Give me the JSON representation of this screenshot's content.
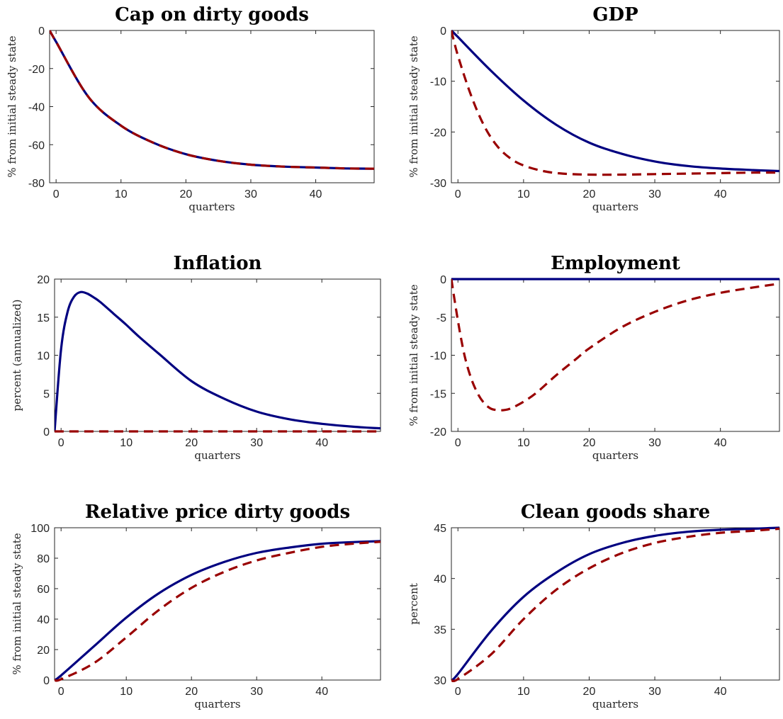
{
  "chart_data": [
    {
      "type": "line",
      "title": "Cap on dirty goods",
      "xlabel": "quarters",
      "ylabel": "% from initial steady state",
      "xlim": [
        -1,
        49
      ],
      "ylim": [
        -80,
        0
      ],
      "xticks": [
        0,
        10,
        20,
        30,
        40
      ],
      "yticks": [
        -80,
        -60,
        -40,
        -20,
        0
      ],
      "grid": false,
      "series": [
        {
          "style": "solid",
          "color": "#000080",
          "x": [
            -1,
            0,
            5,
            10,
            15,
            20,
            25,
            30,
            35,
            40,
            45,
            49
          ],
          "y": [
            0,
            -6,
            -35,
            -50,
            -59,
            -65,
            -68.5,
            -70.5,
            -71.5,
            -72,
            -72.5,
            -72.6
          ]
        },
        {
          "style": "dashed",
          "color": "#990000",
          "x": [
            -1,
            0,
            5,
            10,
            15,
            20,
            25,
            30,
            35,
            40,
            45,
            49
          ],
          "y": [
            0,
            -6,
            -35,
            -50,
            -59,
            -65,
            -68.5,
            -70.5,
            -71.5,
            -72,
            -72.5,
            -72.6
          ]
        }
      ]
    },
    {
      "type": "line",
      "title": "GDP",
      "xlabel": "quarters",
      "ylabel": "% from initial steady state",
      "xlim": [
        -1,
        49
      ],
      "ylim": [
        -30,
        0
      ],
      "xticks": [
        0,
        10,
        20,
        30,
        40
      ],
      "yticks": [
        -30,
        -20,
        -10,
        0
      ],
      "grid": false,
      "series": [
        {
          "style": "solid",
          "color": "#000080",
          "x": [
            -1,
            0,
            5,
            10,
            15,
            20,
            25,
            30,
            35,
            40,
            45,
            49
          ],
          "y": [
            0,
            -1.3,
            -7.9,
            -13.8,
            -18.6,
            -22.1,
            -24.3,
            -25.8,
            -26.7,
            -27.2,
            -27.5,
            -27.7
          ]
        },
        {
          "style": "dashed",
          "color": "#990000",
          "x": [
            -1,
            0,
            2,
            4,
            6,
            8,
            10,
            13,
            16,
            20,
            25,
            30,
            35,
            40,
            45,
            49
          ],
          "y": [
            0,
            -5,
            -12.8,
            -18.8,
            -22.8,
            -25.2,
            -26.6,
            -27.7,
            -28.2,
            -28.4,
            -28.4,
            -28.3,
            -28.2,
            -28.1,
            -28.0,
            -28.0
          ]
        }
      ]
    },
    {
      "type": "line",
      "title": "Inflation",
      "xlabel": "quarters",
      "ylabel": "percent (annualized)",
      "xlim": [
        -1,
        49
      ],
      "ylim": [
        0,
        20
      ],
      "xticks": [
        0,
        10,
        20,
        30,
        40
      ],
      "yticks": [
        0,
        5,
        10,
        15,
        20
      ],
      "grid": false,
      "series": [
        {
          "style": "solid",
          "color": "#000080",
          "x": [
            -1,
            0,
            1,
            2,
            3,
            4,
            5,
            6,
            8,
            10,
            12,
            15,
            20,
            25,
            30,
            35,
            40,
            45,
            49
          ],
          "y": [
            0,
            10.8,
            15.7,
            17.7,
            18.3,
            18.1,
            17.6,
            17,
            15.5,
            14,
            12.4,
            10.2,
            6.6,
            4.3,
            2.6,
            1.6,
            1.0,
            0.6,
            0.4
          ]
        },
        {
          "style": "dashed",
          "color": "#990000",
          "x": [
            -1,
            49
          ],
          "y": [
            0,
            0
          ]
        }
      ]
    },
    {
      "type": "line",
      "title": "Employment",
      "xlabel": "quarters",
      "ylabel": "% from initial steady state",
      "xlim": [
        -1,
        49
      ],
      "ylim": [
        -20,
        0
      ],
      "xticks": [
        0,
        10,
        20,
        30,
        40
      ],
      "yticks": [
        -20,
        -15,
        -10,
        -5,
        0
      ],
      "grid": false,
      "series": [
        {
          "style": "solid",
          "color": "#000080",
          "x": [
            -1,
            49
          ],
          "y": [
            0,
            0
          ]
        },
        {
          "style": "dashed",
          "color": "#990000",
          "x": [
            -1,
            0,
            1,
            2,
            3,
            4,
            5,
            6,
            7,
            8,
            10,
            12,
            15,
            18,
            20,
            25,
            30,
            35,
            40,
            45,
            49
          ],
          "y": [
            0,
            -5.5,
            -10,
            -13,
            -15,
            -16.3,
            -17,
            -17.2,
            -17.2,
            -17,
            -16.1,
            -14.9,
            -12.6,
            -10.5,
            -9.1,
            -6.3,
            -4.3,
            -2.8,
            -1.8,
            -1.1,
            -0.6
          ]
        }
      ]
    },
    {
      "type": "line",
      "title": "Relative price dirty goods",
      "xlabel": "quarters",
      "ylabel": "% from initial steady state",
      "xlim": [
        -1,
        49
      ],
      "ylim": [
        0,
        100
      ],
      "xticks": [
        0,
        10,
        20,
        30,
        40
      ],
      "yticks": [
        0,
        20,
        40,
        60,
        80,
        100
      ],
      "grid": false,
      "series": [
        {
          "style": "solid",
          "color": "#000080",
          "x": [
            -1,
            0,
            5,
            10,
            15,
            20,
            25,
            30,
            35,
            40,
            45,
            49
          ],
          "y": [
            0,
            3,
            22,
            41,
            57,
            69,
            77.5,
            83.5,
            87,
            89.5,
            90.6,
            91.2
          ]
        },
        {
          "style": "dashed",
          "color": "#990000",
          "x": [
            -1,
            0,
            5,
            10,
            15,
            20,
            25,
            30,
            35,
            40,
            45,
            49
          ],
          "y": [
            0,
            0.5,
            11,
            28,
            46,
            60.5,
            71,
            78.5,
            83.5,
            87.5,
            89.6,
            90.8
          ]
        }
      ]
    },
    {
      "type": "line",
      "title": "Clean goods share",
      "xlabel": "quarters",
      "ylabel": "percent",
      "xlim": [
        -1,
        49
      ],
      "ylim": [
        30,
        45
      ],
      "xticks": [
        0,
        10,
        20,
        30,
        40
      ],
      "yticks": [
        30,
        35,
        40,
        45
      ],
      "grid": false,
      "series": [
        {
          "style": "solid",
          "color": "#000080",
          "x": [
            -1,
            0,
            5,
            10,
            15,
            20,
            25,
            30,
            35,
            40,
            45,
            49
          ],
          "y": [
            30,
            30.6,
            34.8,
            38.2,
            40.6,
            42.4,
            43.5,
            44.2,
            44.6,
            44.8,
            44.9,
            45.0
          ]
        },
        {
          "style": "dashed",
          "color": "#990000",
          "x": [
            -1,
            0,
            5,
            10,
            15,
            20,
            25,
            30,
            35,
            40,
            45,
            49
          ],
          "y": [
            30,
            30.1,
            32.5,
            36,
            38.9,
            41,
            42.5,
            43.5,
            44.1,
            44.5,
            44.7,
            44.9
          ]
        }
      ]
    }
  ]
}
